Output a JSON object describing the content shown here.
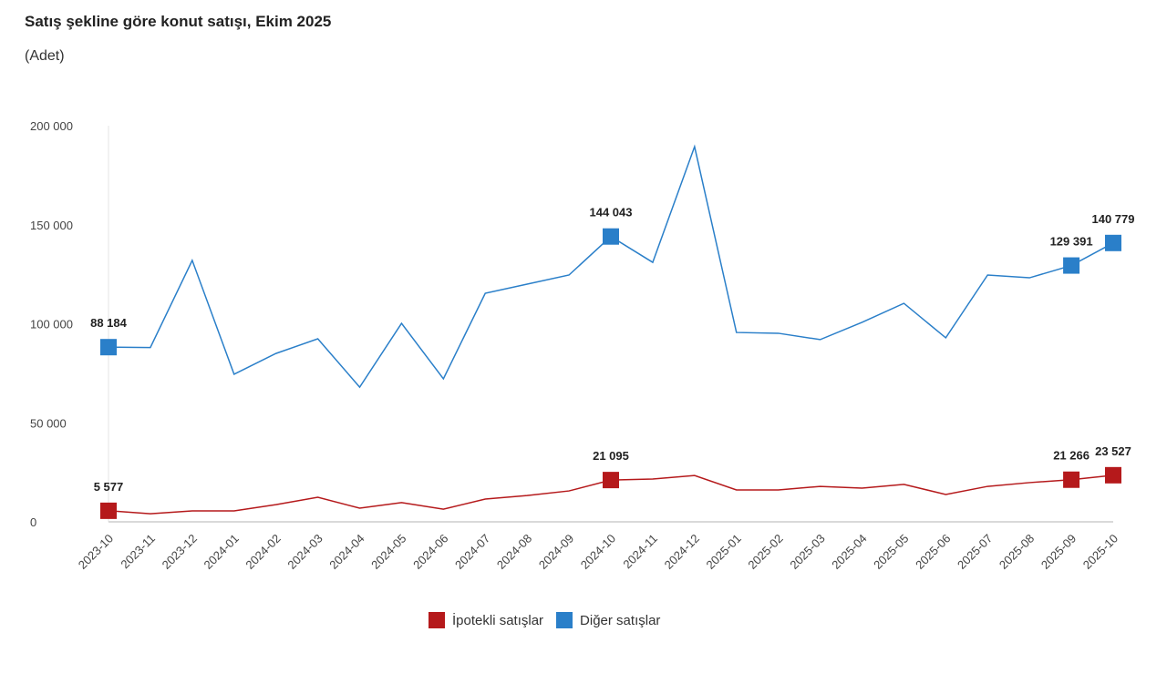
{
  "chart_data": {
    "type": "line",
    "title": "Satış şekline göre konut satışı, Ekim 2025",
    "subtitle": "(Adet)",
    "categories": [
      "2023-10",
      "2023-11",
      "2023-12",
      "2024-01",
      "2024-02",
      "2024-03",
      "2024-04",
      "2024-05",
      "2024-06",
      "2024-07",
      "2024-08",
      "2024-09",
      "2024-10",
      "2024-11",
      "2024-12",
      "2025-01",
      "2025-02",
      "2025-03",
      "2025-04",
      "2025-05",
      "2025-06",
      "2025-07",
      "2025-08",
      "2025-09",
      "2025-10"
    ],
    "ylim": [
      0,
      200000
    ],
    "yticks": [
      0,
      50000,
      100000,
      150000,
      200000
    ],
    "ytick_labels": [
      "0",
      "50 000",
      "100 000",
      "150 000",
      "200 000"
    ],
    "grid": false,
    "legend_position": "bottom",
    "series": [
      {
        "name": "İpotekli satışlar",
        "color": "#b5191b",
        "values": [
          5577,
          4100,
          5500,
          5500,
          8700,
          12400,
          6900,
          9700,
          6400,
          11500,
          13300,
          15600,
          21095,
          21600,
          23400,
          16100,
          16100,
          17900,
          17000,
          18900,
          13800,
          17900,
          19800,
          21266,
          23527
        ],
        "labels": {
          "0": "5 577",
          "12": "21 095",
          "23": "21 266",
          "24": "23 527"
        }
      },
      {
        "name": "Diğer satışlar",
        "color": "#2a7fc9",
        "values": [
          88184,
          88000,
          132000,
          74500,
          85000,
          92400,
          68000,
          100200,
          72200,
          115400,
          120000,
          124600,
          144043,
          131000,
          189400,
          95600,
          95200,
          92000,
          100700,
          110300,
          92900,
          124600,
          123200,
          129391,
          140779
        ],
        "labels": {
          "0": "88 184",
          "12": "144 043",
          "23": "129 391",
          "24": "140 779"
        }
      }
    ]
  }
}
